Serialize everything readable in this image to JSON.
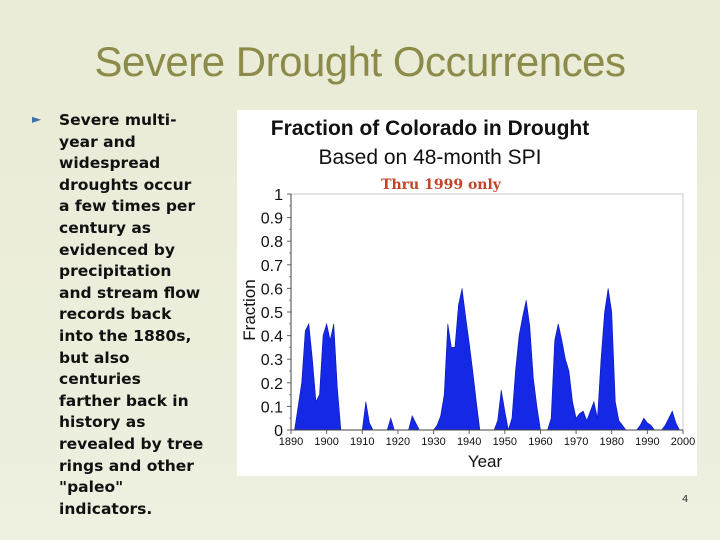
{
  "slide": {
    "title": "Severe Drought Occurrences",
    "bullet": "Severe multi-year and widespread droughts occur a few times per century as evidenced by precipitation and stream flow records back into the 1880s, but also centuries farther back in history as revealed by tree rings and other \"paleo\" indicators.",
    "page_number": "4"
  },
  "chart_data": {
    "type": "area",
    "title": "Fraction of Colorado in Drought",
    "subtitle": "Based on 48-month SPI",
    "annotation": "Thru 1999 only",
    "xlabel": "Year",
    "ylabel": "Fraction",
    "xlim": [
      1890,
      2000
    ],
    "ylim": [
      0,
      1
    ],
    "x_ticks": [
      "1890",
      "1900",
      "1910",
      "1920",
      "1930",
      "1940",
      "1950",
      "1960",
      "1970",
      "1980",
      "1990",
      "2000"
    ],
    "y_ticks": [
      "0",
      "0.1",
      "0.2",
      "0.3",
      "0.4",
      "0.5",
      "0.6",
      "0.7",
      "0.8",
      "0.9",
      "1"
    ],
    "fill_color": "#1428e6",
    "annotation_color": "#c0452a",
    "series": [
      {
        "name": "Fraction of Colorado in Drought",
        "x": [
          1890,
          1891,
          1892,
          1893,
          1894,
          1895,
          1896,
          1897,
          1898,
          1899,
          1900,
          1901,
          1902,
          1903,
          1904,
          1905,
          1906,
          1907,
          1908,
          1909,
          1910,
          1911,
          1912,
          1913,
          1914,
          1915,
          1916,
          1917,
          1918,
          1919,
          1920,
          1921,
          1922,
          1923,
          1924,
          1925,
          1926,
          1927,
          1928,
          1929,
          1930,
          1931,
          1932,
          1933,
          1934,
          1935,
          1936,
          1937,
          1938,
          1939,
          1940,
          1941,
          1942,
          1943,
          1944,
          1945,
          1946,
          1947,
          1948,
          1949,
          1950,
          1951,
          1952,
          1953,
          1954,
          1955,
          1956,
          1957,
          1958,
          1959,
          1960,
          1961,
          1962,
          1963,
          1964,
          1965,
          1966,
          1967,
          1968,
          1969,
          1970,
          1971,
          1972,
          1973,
          1974,
          1975,
          1976,
          1977,
          1978,
          1979,
          1980,
          1981,
          1982,
          1983,
          1984,
          1985,
          1986,
          1987,
          1988,
          1989,
          1990,
          1991,
          1992,
          1993,
          1994,
          1995,
          1996,
          1997,
          1998,
          1999
        ],
        "values": [
          0.0,
          0.0,
          0.1,
          0.2,
          0.42,
          0.45,
          0.3,
          0.12,
          0.15,
          0.4,
          0.45,
          0.38,
          0.45,
          0.18,
          0.0,
          0.0,
          0.0,
          0.0,
          0.0,
          0.0,
          0.0,
          0.12,
          0.03,
          0.0,
          0.0,
          0.0,
          0.0,
          0.0,
          0.05,
          0.0,
          0.0,
          0.0,
          0.0,
          0.0,
          0.06,
          0.03,
          0.0,
          0.0,
          0.0,
          0.0,
          0.0,
          0.02,
          0.06,
          0.15,
          0.45,
          0.35,
          0.35,
          0.53,
          0.6,
          0.48,
          0.37,
          0.25,
          0.12,
          0.0,
          0.0,
          0.0,
          0.0,
          0.0,
          0.04,
          0.17,
          0.08,
          0.0,
          0.05,
          0.25,
          0.4,
          0.48,
          0.55,
          0.44,
          0.22,
          0.1,
          0.0,
          0.0,
          0.0,
          0.05,
          0.38,
          0.45,
          0.38,
          0.3,
          0.25,
          0.12,
          0.05,
          0.07,
          0.08,
          0.04,
          0.08,
          0.12,
          0.05,
          0.3,
          0.5,
          0.6,
          0.5,
          0.12,
          0.04,
          0.02,
          0.0,
          0.0,
          0.0,
          0.0,
          0.02,
          0.05,
          0.03,
          0.02,
          0.0,
          0.0,
          0.0,
          0.02,
          0.05,
          0.08,
          0.03,
          0.0
        ]
      }
    ]
  }
}
